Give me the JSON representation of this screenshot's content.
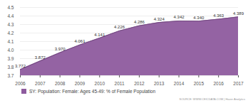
{
  "chart_data": {
    "type": "area",
    "x": [
      2006,
      2007,
      2008,
      2009,
      2010,
      2011,
      2012,
      2013,
      2014,
      2015,
      2016,
      2017
    ],
    "series": [
      {
        "name": "SY: Population: Female: Ages 45-49: % of Female Population",
        "color": "#8e5b9e",
        "values": [
          3.772,
          3.872,
          3.97,
          4.061,
          4.141,
          4.226,
          4.286,
          4.324,
          4.342,
          4.34,
          4.363,
          4.389
        ],
        "value_labels": [
          "3.772",
          "3.872",
          "3.970",
          "4.061",
          "4.141",
          "4.226",
          "4.286",
          "4.324",
          "4.342",
          "4.340",
          "4.363",
          "4.389"
        ]
      }
    ],
    "xlim": [
      2006,
      2017
    ],
    "xticks": [
      2006,
      2007,
      2008,
      2009,
      2010,
      2011,
      2012,
      2013,
      2014,
      2015,
      2016,
      2017
    ],
    "ylim": [
      3.7,
      4.5
    ],
    "yticks": [
      3.7,
      3.8,
      3.9,
      4,
      4.1,
      4.2,
      4.3,
      4.4,
      4.5
    ],
    "grid": true,
    "data_labels": true,
    "legend": "bottom",
    "annotations": [
      "SOURCE: WWW.CEICDATA.COM | Haver Analytics"
    ]
  }
}
